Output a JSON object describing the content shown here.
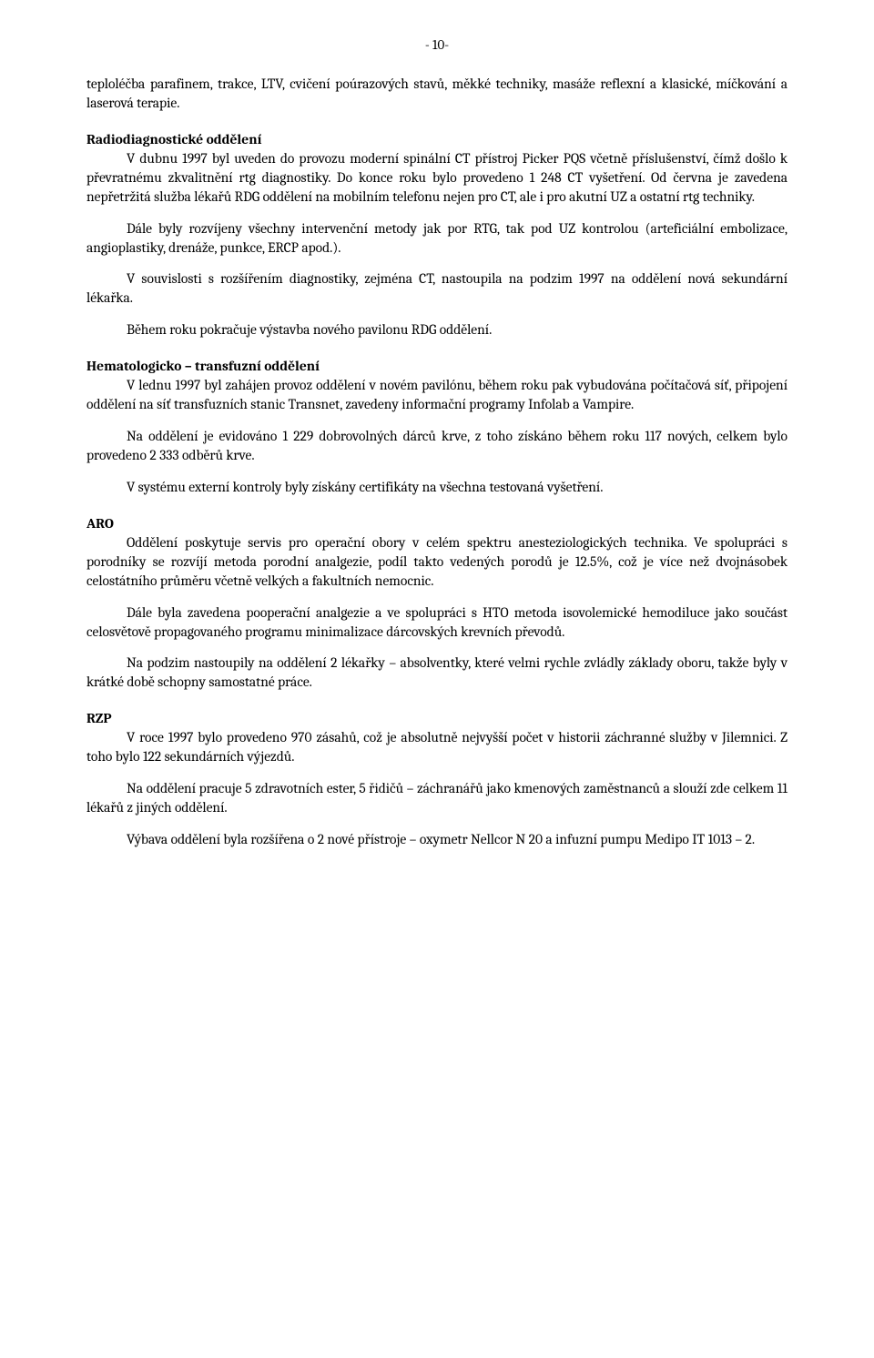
{
  "document": {
    "page_number_label": "- 10-",
    "text_color": "#000000",
    "background_color": "#ffffff",
    "font_family": "Cambria, Georgia, serif",
    "body_font_size_pt": 11.5,
    "paragraphs_intro": [
      "teploléčba parafinem, trakce, LTV, cvičení poúrazových stavů, měkké techniky, masáže reflexní a klasické, míčkování a laserová terapie."
    ],
    "sections": [
      {
        "heading": "Radiodiagnostické oddělení",
        "paragraphs": [
          "V dubnu 1997 byl uveden do provozu moderní spinální CT přístroj Picker PQS včetně příslušenství, čímž došlo k převratnému zkvalitnění rtg diagnostiky. Do konce roku bylo provedeno 1 248 CT vyšetření. Od června je zavedena nepřetržitá služba lékařů RDG oddělení na mobilním telefonu nejen pro CT, ale i pro akutní UZ a ostatní rtg techniky.",
          "Dále byly rozvíjeny všechny intervenční metody jak por RTG, tak pod UZ kontrolou (arteficiální embolizace, angioplastiky, drenáže, punkce, ERCP apod.).",
          "V souvislosti s rozšířením diagnostiky, zejména CT, nastoupila na podzim 1997 na oddělení nová sekundární lékařka.",
          "Během roku pokračuje výstavba nového pavilonu RDG oddělení."
        ]
      },
      {
        "heading": "Hematologicko – transfuzní oddělení",
        "paragraphs": [
          "V lednu 1997 byl zahájen provoz oddělení v novém pavilónu, během roku pak vybudována počítačová síť, připojení oddělení na síť transfuzních stanic Transnet, zavedeny informační programy Infolab a Vampire.",
          "Na oddělení je evidováno 1 229 dobrovolných dárců krve, z toho získáno během roku 117 nových, celkem bylo provedeno 2 333 odběrů krve.",
          "V systému externí kontroly byly získány certifikáty na všechna testovaná vyšetření."
        ]
      },
      {
        "heading": "ARO",
        "paragraphs": [
          "Oddělení poskytuje servis pro operační obory v celém spektru anesteziologických technika. Ve spolupráci s porodníky se rozvíjí metoda porodní analgezie, podíl takto vedených porodů je 12.5%, což je více než dvojnásobek celostátního průměru včetně velkých a fakultních nemocnic.",
          "Dále byla zavedena pooperační analgezie a ve spolupráci s HTO metoda isovolemické hemodiluce jako součást celosvětově propagovaného programu minimalizace dárcovských krevních převodů.",
          "Na podzim nastoupily na oddělení 2 lékařky – absolventky, které velmi rychle zvládly základy oboru, takže byly v krátké době schopny samostatné práce."
        ]
      },
      {
        "heading": "RZP",
        "paragraphs": [
          "V roce 1997 bylo provedeno 970 zásahů, což je absolutně nejvyšší počet v historii záchranné služby v Jilemnici. Z toho bylo 122 sekundárních výjezdů.",
          "Na oddělení pracuje 5 zdravotních ester, 5 řidičů – záchranářů jako kmenových zaměstnanců a slouží zde celkem 11 lékařů z jiných oddělení.",
          "Výbava oddělení byla rozšířena o 2 nové přístroje – oxymetr Nellcor N 20 a infuzní pumpu Medipo IT 1013 – 2."
        ]
      }
    ]
  }
}
